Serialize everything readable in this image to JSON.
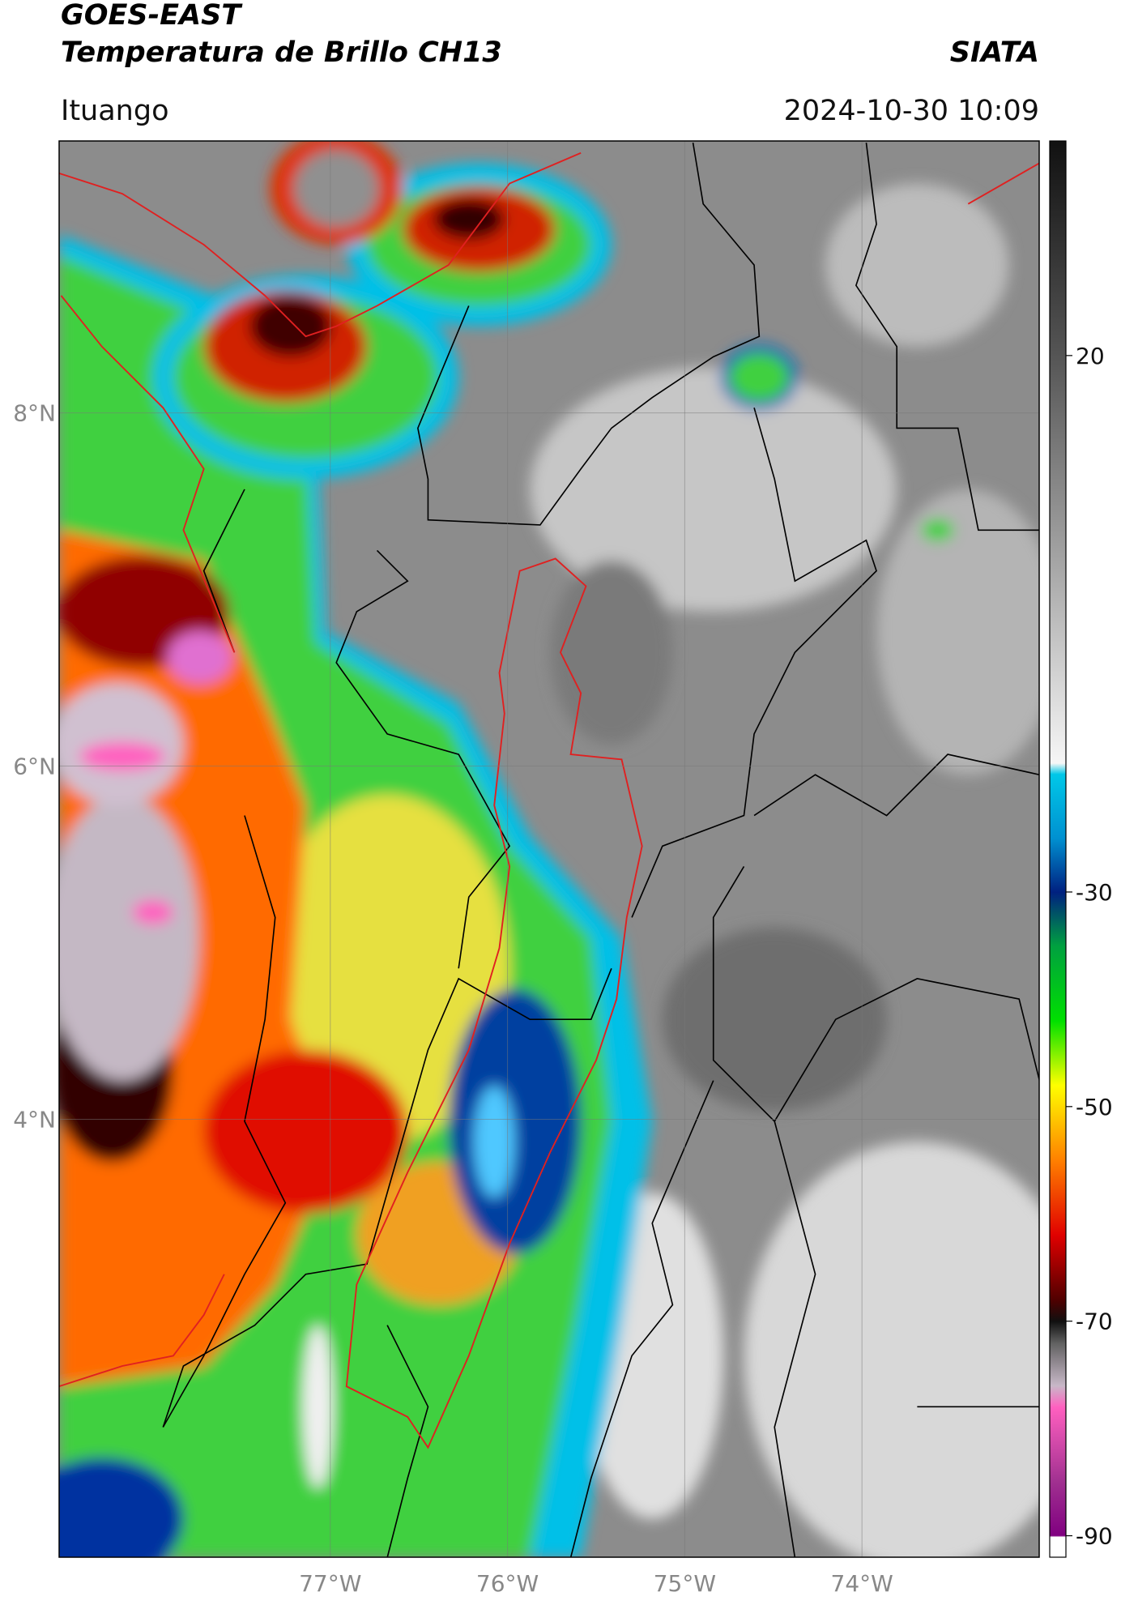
{
  "title": "GOES-EAST",
  "subtitle": "Temperatura de Brillo CH13",
  "source": "SIATA",
  "location": "Ituango",
  "timestamp": "2024-10-30 10:09",
  "map": {
    "xlim": [
      -78.53,
      -73.0
    ],
    "ylim": [
      1.52,
      9.54
    ],
    "xticks": [
      {
        "value": -77,
        "label": "77°W"
      },
      {
        "value": -76,
        "label": "76°W"
      },
      {
        "value": -75,
        "label": "75°W"
      },
      {
        "value": -74,
        "label": "74°W"
      }
    ],
    "yticks": [
      {
        "value": 8,
        "label": "8°N"
      },
      {
        "value": 6,
        "label": "6°N"
      },
      {
        "value": 4,
        "label": "4°N"
      }
    ],
    "grid": true
  },
  "colorbar": {
    "clim": [
      -92,
      40
    ],
    "ticks": [
      20,
      -30,
      -50,
      -70,
      -90
    ],
    "colorscale": [
      {
        "value": 40,
        "color": "#111111"
      },
      {
        "value": 20,
        "color": "#555555"
      },
      {
        "value": 0,
        "color": "#a8a8a8"
      },
      {
        "value": -18,
        "color": "#f6f6f6"
      },
      {
        "value": -19,
        "color": "#00c8e8"
      },
      {
        "value": -25,
        "color": "#0090d0"
      },
      {
        "value": -30,
        "color": "#002080"
      },
      {
        "value": -35,
        "color": "#00a040"
      },
      {
        "value": -42,
        "color": "#00e000"
      },
      {
        "value": -48,
        "color": "#ffff00"
      },
      {
        "value": -55,
        "color": "#ff8000"
      },
      {
        "value": -62,
        "color": "#e00000"
      },
      {
        "value": -68,
        "color": "#500000"
      },
      {
        "value": -70,
        "color": "#101010"
      },
      {
        "value": -72,
        "color": "#606060"
      },
      {
        "value": -76,
        "color": "#c8b8c8"
      },
      {
        "value": -78,
        "color": "#ff60c0"
      },
      {
        "value": -85,
        "color": "#a03090"
      },
      {
        "value": -90,
        "color": "#800080"
      },
      {
        "value": -90.1,
        "color": "#ffffff"
      },
      {
        "value": -92,
        "color": "#ffffff"
      }
    ]
  }
}
